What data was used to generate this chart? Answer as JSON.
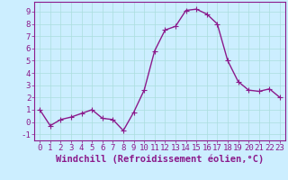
{
  "x": [
    0,
    1,
    2,
    3,
    4,
    5,
    6,
    7,
    8,
    9,
    10,
    11,
    12,
    13,
    14,
    15,
    16,
    17,
    18,
    19,
    20,
    21,
    22,
    23
  ],
  "y": [
    1.0,
    -0.3,
    0.2,
    0.4,
    0.7,
    1.0,
    0.3,
    0.2,
    -0.7,
    0.8,
    2.6,
    5.8,
    7.5,
    7.8,
    9.1,
    9.2,
    8.8,
    8.0,
    5.0,
    3.3,
    2.6,
    2.5,
    2.7,
    2.0
  ],
  "line_color": "#8b1a8b",
  "marker": "+",
  "marker_size": 4,
  "marker_color": "#8b1a8b",
  "bg_color": "#cceeff",
  "grid_color": "#aadddd",
  "xlim": [
    -0.5,
    23.5
  ],
  "ylim": [
    -1.5,
    9.8
  ],
  "yticks": [
    -1,
    0,
    1,
    2,
    3,
    4,
    5,
    6,
    7,
    8,
    9
  ],
  "xticks": [
    0,
    1,
    2,
    3,
    4,
    5,
    6,
    7,
    8,
    9,
    10,
    11,
    12,
    13,
    14,
    15,
    16,
    17,
    18,
    19,
    20,
    21,
    22,
    23
  ],
  "xlabel": "Windchill (Refroidissement éolien,°C)",
  "xlabel_fontsize": 7.5,
  "tick_fontsize": 6.5,
  "tick_color": "#8b1a8b",
  "axis_color": "#8b1a8b",
  "line_width": 1.0
}
